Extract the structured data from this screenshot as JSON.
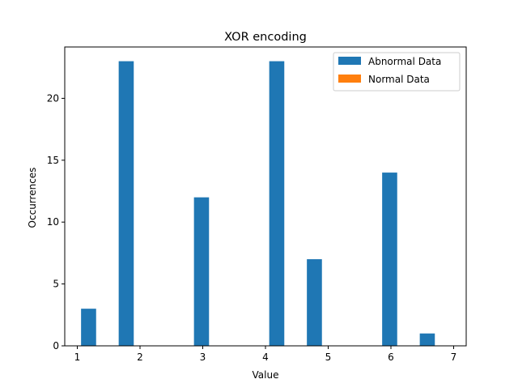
{
  "chart_data": {
    "type": "bar",
    "title": "XOR encoding",
    "xlabel": "Value",
    "ylabel": "Occurrences",
    "xlim": [
      0.8,
      7.2
    ],
    "ylim": [
      0,
      24.15
    ],
    "xticks": [
      1,
      2,
      3,
      4,
      5,
      6,
      7
    ],
    "yticks": [
      0,
      5,
      10,
      15,
      20
    ],
    "bar_width": 0.24,
    "legend": "top-right",
    "series": [
      {
        "name": "Abnormal Data",
        "color": "#1f77b4",
        "x": [
          1.18,
          1.78,
          2.98,
          4.18,
          4.78,
          5.98,
          6.58
        ],
        "values": [
          3,
          23,
          12,
          23,
          7,
          14,
          1
        ]
      },
      {
        "name": "Normal Data",
        "color": "#ff7f0e",
        "x": [],
        "values": []
      }
    ]
  }
}
